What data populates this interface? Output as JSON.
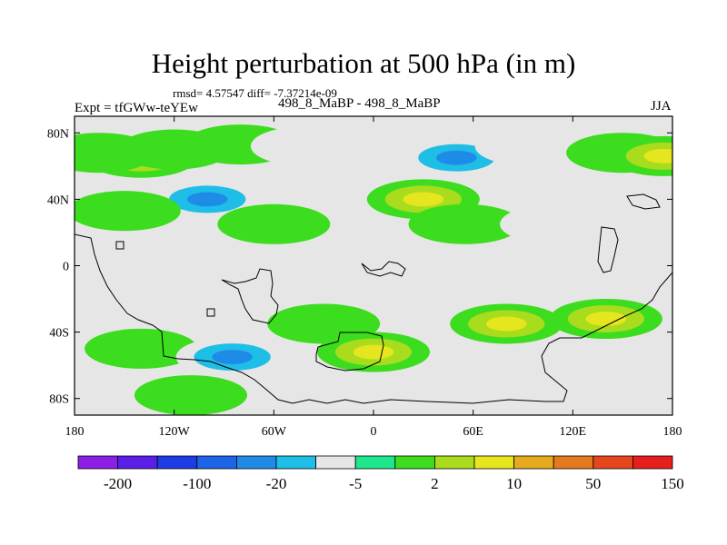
{
  "chart_data": {
    "type": "heatmap",
    "title": "Height perturbation at 500 hPa (in m)",
    "stats_text": "rmsd= 4.57547 diff= -7.37214e-09",
    "experiment_label": "Expt = tfGWw-teYEw",
    "experiment_name": "498_8_MaBP - 498_8_MaBP",
    "season": "JJA",
    "xlim": [
      -180,
      180
    ],
    "ylim": [
      -90,
      90
    ],
    "x_ticks": [
      "180",
      "120W",
      "60W",
      "0",
      "60E",
      "120E",
      "180"
    ],
    "y_ticks": [
      "80N",
      "40N",
      "0",
      "40S",
      "80S"
    ],
    "colorbar": {
      "levels": [
        "-200",
        "-100",
        "-20",
        "-5",
        "2",
        "10",
        "50",
        "150"
      ],
      "colors": [
        "#8c1ee6",
        "#5a1ee6",
        "#1e3ce6",
        "#1e64e6",
        "#1e8ce6",
        "#1ebee6",
        "#e6e6e6",
        "#1ee68c",
        "#3cdc1e",
        "#aadc1e",
        "#e6e61e",
        "#e6aa1e",
        "#e6781e",
        "#e6461e",
        "#e61e1e"
      ]
    },
    "anomaly_centers": [
      {
        "lon": -140,
        "lat": 65,
        "level": 10
      },
      {
        "lon": -165,
        "lat": 68,
        "level": 2
      },
      {
        "lon": -120,
        "lat": 70,
        "level": 2
      },
      {
        "lon": -80,
        "lat": 73,
        "level": 2
      },
      {
        "lon": -40,
        "lat": 72,
        "level": -5
      },
      {
        "lon": 20,
        "lat": 75,
        "level": -5
      },
      {
        "lon": 50,
        "lat": 65,
        "level": -20
      },
      {
        "lon": 95,
        "lat": 72,
        "level": -5
      },
      {
        "lon": 150,
        "lat": 68,
        "level": 2
      },
      {
        "lon": 175,
        "lat": 66,
        "level": 10
      },
      {
        "lon": -100,
        "lat": 40,
        "level": -20
      },
      {
        "lon": -150,
        "lat": 33,
        "level": 2
      },
      {
        "lon": -60,
        "lat": 25,
        "level": 2
      },
      {
        "lon": 30,
        "lat": 40,
        "level": 10
      },
      {
        "lon": 55,
        "lat": 25,
        "level": 2
      },
      {
        "lon": 110,
        "lat": 25,
        "level": -5
      },
      {
        "lon": 165,
        "lat": 40,
        "level": -5
      },
      {
        "lon": -175,
        "lat": -40,
        "level": -5
      },
      {
        "lon": -140,
        "lat": -50,
        "level": 2
      },
      {
        "lon": -85,
        "lat": -55,
        "level": -20
      },
      {
        "lon": -30,
        "lat": -35,
        "level": 2
      },
      {
        "lon": 0,
        "lat": -52,
        "level": 10
      },
      {
        "lon": 80,
        "lat": -35,
        "level": 10
      },
      {
        "lon": 140,
        "lat": -32,
        "level": 10
      },
      {
        "lon": 40,
        "lat": -75,
        "level": -5
      },
      {
        "lon": -110,
        "lat": -78,
        "level": 2
      }
    ]
  }
}
